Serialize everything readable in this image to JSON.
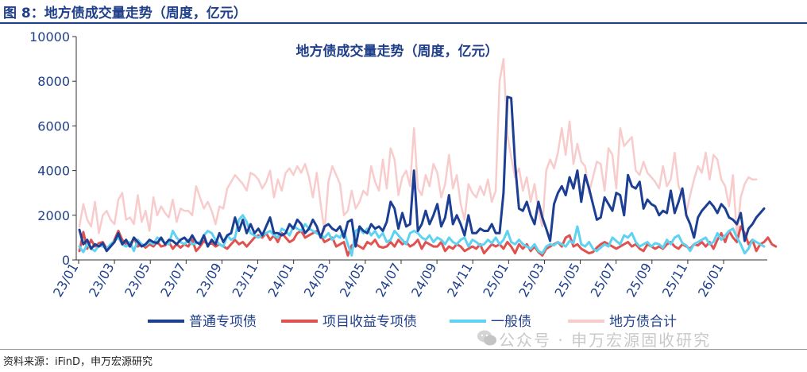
{
  "figure_title": "图 8：地方债成交量走势（周度，亿元）",
  "source": "资料来源：iFinD，申万宏源研究",
  "watermark": "公众号 · 申万宏源固收研究",
  "chart_data": {
    "type": "line",
    "title": "地方债成交量走势（周度，亿元）",
    "xlabel": "",
    "ylabel": "",
    "ylim": [
      0,
      10000
    ],
    "yticks": [
      "0",
      "2000",
      "4000",
      "6000",
      "8000",
      "10000"
    ],
    "x_start": "23/01",
    "x_end": "26/02",
    "xtick_labels": [
      "23/01",
      "23/03",
      "23/05",
      "23/07",
      "23/09",
      "23/11",
      "24/01",
      "24/03",
      "24/05",
      "24/07",
      "24/09",
      "24/11",
      "25/01",
      "25/03",
      "25/05",
      "25/07",
      "25/09",
      "25/11",
      "26/01"
    ],
    "legend_position": "bottom",
    "grid": false,
    "series": [
      {
        "name": "普通专项债",
        "color": "#1c3f94",
        "values": [
          1350,
          700,
          900,
          500,
          700,
          600,
          750,
          400,
          600,
          800,
          1200,
          700,
          900,
          600,
          1000,
          800,
          600,
          700,
          900,
          800,
          750,
          1000,
          700,
          900,
          850,
          700,
          900,
          1000,
          800,
          1100,
          800,
          700,
          1100,
          600,
          900,
          700,
          1200,
          800,
          1100,
          1200,
          1900,
          1300,
          1800,
          1200,
          1600,
          1200,
          1400,
          1100,
          1500,
          1900,
          1200,
          1200,
          1100,
          1200,
          1600,
          1400,
          1800,
          1600,
          1200,
          1400,
          1800,
          1500,
          1000,
          1500,
          1600,
          1400,
          1300,
          1500,
          1000,
          1700,
          1800,
          600,
          1500,
          1300,
          1200,
          1600,
          1400,
          1500,
          1300,
          1700,
          2600,
          2300,
          1400,
          2100,
          1500,
          1600,
          4000,
          1300,
          1600,
          2200,
          1600,
          2000,
          2500,
          1500,
          1900,
          2900,
          1600,
          2000,
          1600,
          1100,
          2000,
          1200,
          1200,
          1400,
          1300,
          1300,
          1600,
          1200,
          1200,
          3000,
          7300,
          7250,
          4300,
          2300,
          2200,
          2600,
          2000,
          1600,
          2600,
          1900,
          1400,
          850,
          2500,
          3000,
          3300,
          2900,
          3700,
          3200,
          4000,
          2600,
          3800,
          3200,
          2500,
          1800,
          1900,
          2800,
          2500,
          2200,
          3000,
          2900,
          2000,
          3800,
          3300,
          3200,
          3500,
          2300,
          2700,
          2500,
          2400,
          2000,
          2200,
          2100,
          3100,
          2100,
          2600,
          3200,
          2000,
          1600,
          1000,
          1900,
          2200,
          2400,
          2600,
          2400,
          2100,
          2500,
          2300,
          1900,
          1800,
          1600,
          2100,
          850,
          1400,
          1600,
          1900,
          2100,
          2300
        ]
      },
      {
        "name": "项目收益专项债",
        "color": "#e0524f",
        "values": [
          400,
          1250,
          500,
          900,
          600,
          750,
          800,
          500,
          600,
          900,
          1300,
          900,
          700,
          600,
          1000,
          600,
          700,
          550,
          700,
          600,
          800,
          600,
          650,
          800,
          500,
          700,
          550,
          700,
          600,
          900,
          400,
          600,
          850,
          700,
          750,
          600,
          700,
          600,
          500,
          700,
          900,
          700,
          800,
          600,
          800,
          1000,
          1100,
          1000,
          1200,
          900,
          1100,
          800,
          1200,
          1000,
          800,
          900,
          1200,
          1300,
          1000,
          1100,
          1200,
          1300,
          1100,
          800,
          900,
          1000,
          600,
          700,
          800,
          200,
          650,
          700,
          600,
          500,
          800,
          700,
          900,
          600,
          550,
          600,
          800,
          600,
          900,
          700,
          800,
          600,
          700,
          900,
          500,
          800,
          700,
          600,
          600,
          800,
          400,
          600,
          500,
          700,
          600,
          400,
          500,
          600,
          500,
          700,
          300,
          500,
          700,
          600,
          700,
          500,
          800,
          600,
          300,
          700,
          500,
          700,
          400,
          600,
          350,
          200,
          500,
          600,
          700,
          800,
          600,
          1000,
          1100,
          600,
          700,
          500,
          400,
          300,
          350,
          550,
          700,
          800,
          700,
          600,
          500,
          600,
          700,
          800,
          600,
          700,
          500,
          400,
          700,
          600,
          500,
          600,
          500,
          700,
          800,
          600,
          500,
          700,
          600,
          500,
          700,
          650,
          800,
          600,
          800,
          500,
          900,
          1200,
          800,
          1300,
          1000,
          800,
          1500,
          1200,
          700,
          900,
          400,
          700,
          800,
          1000,
          700,
          600
        ]
      },
      {
        "name": "一般债",
        "color": "#5fd2f2",
        "values": [
          600,
          350,
          700,
          500,
          400,
          650,
          600,
          500,
          700,
          850,
          1000,
          700,
          600,
          800,
          400,
          900,
          700,
          650,
          800,
          700,
          1000,
          900,
          750,
          700,
          1300,
          1000,
          800,
          700,
          900,
          700,
          750,
          800,
          1100,
          1300,
          1200,
          900,
          700,
          600,
          1100,
          900,
          1000,
          1800,
          2000,
          1700,
          1200,
          1100,
          1000,
          1100,
          1200,
          1300,
          1100,
          1000,
          1400,
          1300,
          1100,
          1500,
          1400,
          1300,
          1600,
          1400,
          1300,
          1200,
          1100,
          1000,
          1200,
          900,
          1100,
          1000,
          1300,
          700,
          200,
          1300,
          1400,
          1200,
          1400,
          1100,
          1300,
          1000,
          1200,
          800,
          900,
          1300,
          1100,
          900,
          700,
          1200,
          1300,
          1200,
          1000,
          900,
          1100,
          800,
          1000,
          900,
          700,
          1000,
          800,
          700,
          900,
          1000,
          600,
          900,
          800,
          650,
          700,
          900,
          750,
          1000,
          700,
          900,
          1300,
          800,
          700,
          900,
          700,
          600,
          500,
          700,
          400,
          300,
          600,
          700,
          650,
          800,
          700,
          600,
          850,
          750,
          1500,
          700,
          600,
          800,
          500,
          400,
          550,
          700,
          600,
          1000,
          850,
          700,
          1100,
          1000,
          1200,
          800,
          600,
          700,
          800,
          600,
          750,
          700,
          550,
          900,
          700,
          1000,
          1100,
          750,
          650,
          400,
          700,
          800,
          900,
          1000,
          700,
          800,
          1200,
          900,
          1100,
          1300,
          1400,
          1000,
          700,
          300,
          500,
          900,
          800,
          700,
          600
        ]
      },
      {
        "name": "地方债合计",
        "color": "#f8cccc",
        "values": [
          1500,
          2500,
          1800,
          1500,
          2600,
          1200,
          2000,
          2200,
          1800,
          1600,
          2700,
          3000,
          1800,
          1900,
          1600,
          2900,
          1700,
          2200,
          1300,
          2800,
          2000,
          2400,
          2100,
          1900,
          2700,
          1700,
          2300,
          2200,
          2200,
          2000,
          3300,
          2800,
          2300,
          2600,
          2200,
          1600,
          2400,
          2300,
          3200,
          3500,
          3800,
          3600,
          3400,
          3100,
          3900,
          3800,
          3600,
          3200,
          3500,
          4000,
          2800,
          3600,
          3100,
          3900,
          4100,
          3800,
          4200,
          3900,
          4300,
          3700,
          2800,
          3900,
          2500,
          1300,
          3500,
          4200,
          3800,
          3400,
          2000,
          2200,
          3100,
          2300,
          2600,
          3100,
          2900,
          4200,
          3500,
          3100,
          4500,
          3200,
          5000,
          4500,
          2900,
          3700,
          4000,
          3300,
          5900,
          3200,
          2900,
          3800,
          3300,
          4300,
          3900,
          2800,
          3400,
          4700,
          3200,
          3800,
          2500,
          1800,
          3400,
          3000,
          2800,
          3300,
          2900,
          3600,
          2600,
          3100,
          8000,
          9000,
          5600,
          4600,
          3700,
          4100,
          3100,
          3700,
          2600,
          3400,
          2200,
          1500,
          4000,
          4500,
          4100,
          4800,
          5900,
          4700,
          6200,
          4300,
          5200,
          4400,
          4200,
          3000,
          3700,
          4400,
          4300,
          3100,
          5000,
          4700,
          3200,
          5900,
          5100,
          5300,
          5500,
          4000,
          3800,
          4400,
          3900,
          3700,
          3500,
          3200,
          4200,
          3300,
          3600,
          4800,
          3300,
          2900,
          2100,
          2900,
          3600,
          4200,
          3900,
          4800,
          3600,
          4700,
          4500,
          3600,
          3300,
          2400,
          3800,
          1100,
          2800,
          3400,
          3700,
          3600,
          3600
        ]
      }
    ]
  }
}
